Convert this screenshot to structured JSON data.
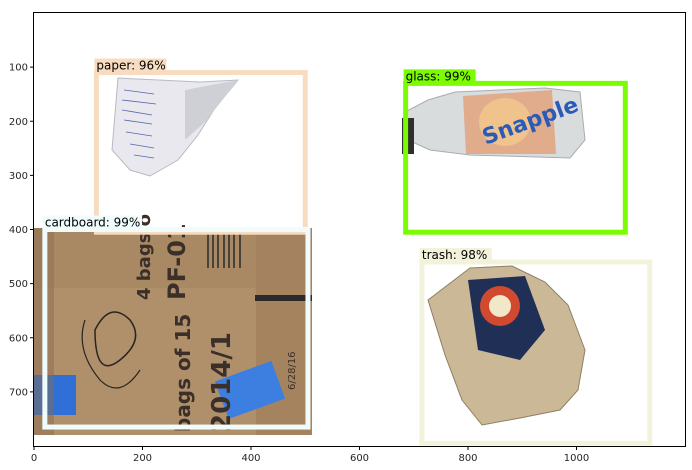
{
  "image": {
    "x_range": [
      0,
      1200
    ],
    "y_range": [
      800,
      0
    ]
  },
  "axes": {
    "x_ticks": [
      {
        "value": 0,
        "label": "0"
      },
      {
        "value": 200,
        "label": "200"
      },
      {
        "value": 400,
        "label": "400"
      },
      {
        "value": 600,
        "label": "600"
      },
      {
        "value": 800,
        "label": "800"
      },
      {
        "value": 1000,
        "label": "1000"
      }
    ],
    "y_ticks": [
      {
        "value": 100,
        "label": "100"
      },
      {
        "value": 200,
        "label": "200"
      },
      {
        "value": 300,
        "label": "300"
      },
      {
        "value": 400,
        "label": "400"
      },
      {
        "value": 500,
        "label": "500"
      },
      {
        "value": 600,
        "label": "600"
      },
      {
        "value": 700,
        "label": "700"
      }
    ]
  },
  "detections": [
    {
      "id": "paper",
      "label": "paper: 96%",
      "x1": 115,
      "y1": 110,
      "x2": 500,
      "y2": 405,
      "color": "#f8dcc0"
    },
    {
      "id": "glass",
      "label": "glass: 99%",
      "x1": 685,
      "y1": 130,
      "x2": 1090,
      "y2": 405,
      "color": "#7cfc00"
    },
    {
      "id": "cardboard",
      "label": "cardboard: 99%",
      "x1": 20,
      "y1": 400,
      "x2": 505,
      "y2": 765,
      "color": "#f0fcfc"
    },
    {
      "id": "trash",
      "label": "trash: 98%",
      "x1": 715,
      "y1": 460,
      "x2": 1135,
      "y2": 795,
      "color": "#f3f3dc"
    }
  ]
}
